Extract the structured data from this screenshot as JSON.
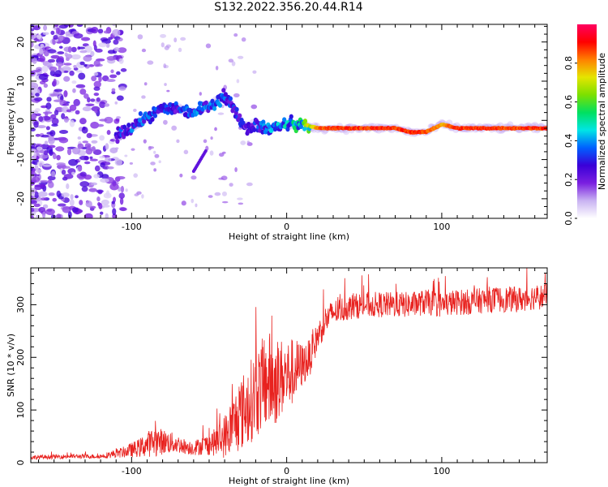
{
  "page_title": "S132.2022.356.20.44.R14",
  "chart_data": [
    {
      "type": "heatmap",
      "title": "S132.2022.356.20.44.R14",
      "xlabel": "Height of straight line (km)",
      "ylabel": "Frequency (Hz)",
      "xlim": [
        -165,
        168
      ],
      "ylim": [
        -25,
        24.5
      ],
      "xticks": [
        -100,
        0,
        100
      ],
      "xtick_labels": [
        "-100",
        "0",
        "100"
      ],
      "yticks": [
        -20,
        -10,
        0,
        10,
        20
      ],
      "ytick_labels": [
        "-20",
        "-10",
        "0",
        "10",
        "20"
      ],
      "colorbar": {
        "label": "Normalized spectral amplitude",
        "range": [
          0.0,
          1.0
        ],
        "ticks": [
          0.0,
          0.2,
          0.4,
          0.6,
          0.8
        ],
        "tick_labels": [
          "0.0",
          "0.2",
          "0.4",
          "0.6",
          "0.8"
        ],
        "colormap": [
          "#ffffff",
          "#c9b3f2",
          "#7a1fe0",
          "#3a00d8",
          "#0060ff",
          "#00e5e5",
          "#00e060",
          "#7ce000",
          "#e5e500",
          "#ff8000",
          "#ff0000",
          "#ff0060"
        ]
      },
      "signal_track": {
        "x": [
          -110,
          -100,
          -90,
          -80,
          -70,
          -60,
          -50,
          -40,
          -35,
          -30,
          -25,
          -20,
          -15,
          -10,
          0,
          10,
          20,
          30,
          40,
          50,
          60,
          70,
          80,
          90,
          100,
          110,
          120,
          140,
          168
        ],
        "freq": [
          -4,
          -2,
          1,
          3,
          3,
          2,
          4,
          6,
          4,
          0,
          -2,
          -1,
          -2,
          -2,
          -1,
          -1,
          -2,
          -2,
          -2,
          -2,
          -2,
          -2,
          -3,
          -3,
          -1,
          -2,
          -2,
          -2,
          -2
        ],
        "amplitude": [
          0.3,
          0.35,
          0.35,
          0.3,
          0.3,
          0.35,
          0.35,
          0.35,
          0.3,
          0.3,
          0.25,
          0.3,
          0.35,
          0.4,
          0.45,
          0.5,
          0.85,
          0.9,
          0.9,
          0.9,
          0.9,
          0.9,
          0.9,
          0.9,
          0.8,
          0.9,
          0.9,
          0.9,
          0.9
        ]
      }
    },
    {
      "type": "line",
      "xlabel": "Height of straight line (km)",
      "ylabel": "SNR (10 * v/v)",
      "xlim": [
        -165,
        168
      ],
      "ylim": [
        0,
        370
      ],
      "xticks": [
        -100,
        0,
        100
      ],
      "xtick_labels": [
        "-100",
        "0",
        "100"
      ],
      "yticks": [
        0,
        100,
        200,
        300
      ],
      "ytick_labels": [
        "0",
        "100",
        "200",
        "300"
      ],
      "color": "#e8221f",
      "envelope": {
        "x": [
          -165,
          -140,
          -120,
          -105,
          -95,
          -90,
          -85,
          -80,
          -75,
          -70,
          -65,
          -60,
          -55,
          -50,
          -45,
          -40,
          -35,
          -30,
          -25,
          -20,
          -15,
          -12,
          -10,
          -8,
          -5,
          0,
          5,
          10,
          15,
          20,
          25,
          30,
          40,
          50,
          60,
          70,
          80,
          90,
          100,
          110,
          120,
          130,
          140,
          150,
          160,
          168
        ],
        "mean": [
          10,
          12,
          12,
          20,
          28,
          35,
          40,
          40,
          38,
          35,
          30,
          28,
          32,
          35,
          40,
          50,
          70,
          90,
          110,
          130,
          150,
          160,
          150,
          155,
          160,
          165,
          175,
          185,
          200,
          240,
          270,
          285,
          295,
          300,
          300,
          300,
          300,
          305,
          300,
          305,
          305,
          310,
          310,
          310,
          315,
          315
        ],
        "spread": [
          6,
          6,
          6,
          15,
          25,
          35,
          40,
          35,
          30,
          25,
          20,
          20,
          25,
          30,
          40,
          60,
          80,
          100,
          110,
          120,
          130,
          140,
          130,
          130,
          110,
          100,
          90,
          60,
          50,
          40,
          40,
          35,
          35,
          35,
          35,
          35,
          35,
          35,
          35,
          35,
          35,
          35,
          35,
          35,
          35,
          35
        ]
      }
    }
  ]
}
